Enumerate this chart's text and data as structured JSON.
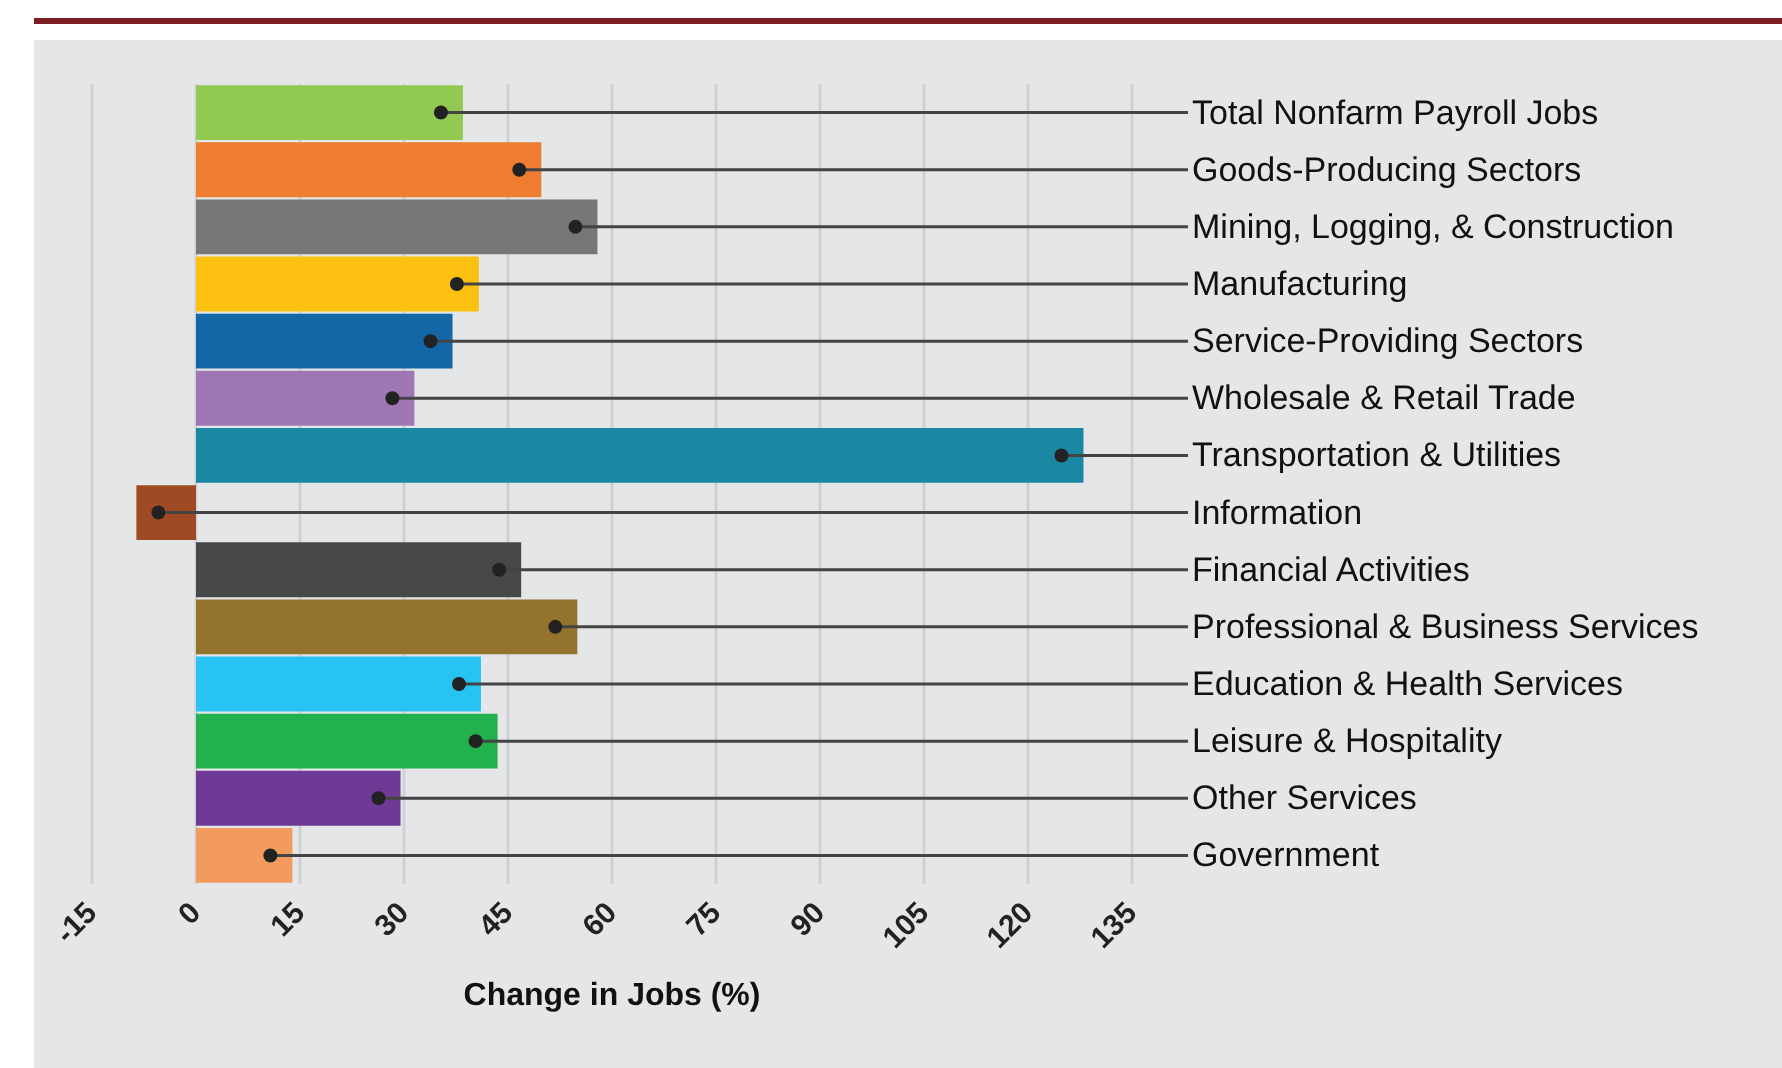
{
  "chart_data": {
    "type": "bar",
    "orientation": "horizontal",
    "xlabel": "Change in Jobs (%)",
    "categories": [
      "Total Nonfarm Payroll Jobs",
      "Goods-Producing Sectors",
      "Mining, Logging, & Construction",
      "Manufacturing",
      "Service-Providing Sectors",
      "Wholesale & Retail Trade",
      "Transportation & Utilities",
      "Information",
      "Financial Activities",
      "Professional & Business Services",
      "Education & Health Services",
      "Leisure & Hospitality",
      "Other Services",
      "Government"
    ],
    "values": [
      38.5,
      49.8,
      57.9,
      40.8,
      37,
      31.5,
      128,
      -8.6,
      46.9,
      55,
      41.1,
      43.5,
      29.5,
      13.9
    ],
    "colors": [
      "#92c952",
      "#ee7d31",
      "#767779",
      "#fcc010",
      "#1367a7",
      "#a077b5",
      "#1a87a3",
      "#9f4a22",
      "#474849",
      "#94732c",
      "#27c3f3",
      "#22b14d",
      "#6f3996",
      "#f39b5d"
    ],
    "xlim": [
      -15,
      135
    ],
    "xticks": [
      -15,
      0,
      15,
      30,
      45,
      60,
      75,
      90,
      105,
      120,
      135
    ],
    "grid": "x",
    "tick_labels": "x"
  }
}
